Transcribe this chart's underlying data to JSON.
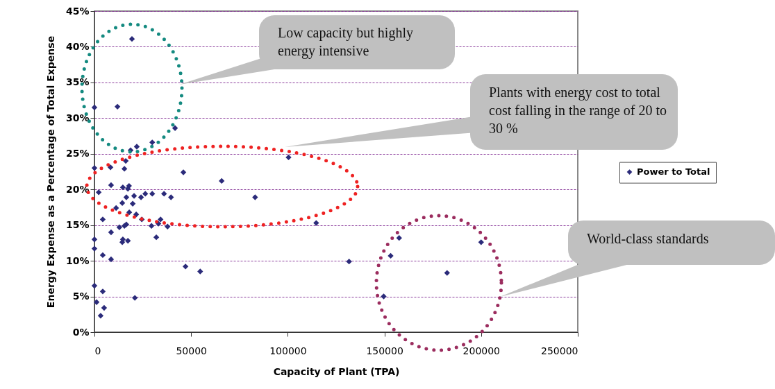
{
  "chart_data": {
    "type": "scatter",
    "xlabel": "Capacity of Plant (TPA)",
    "ylabel": "Energy Expense as a Percentage of Total Expense",
    "xlim": [
      0,
      250000
    ],
    "xticks": [
      0,
      50000,
      100000,
      150000,
      200000,
      250000
    ],
    "ylim": [
      0,
      45
    ],
    "yticks": [
      {
        "value": 0,
        "label": "0%"
      },
      {
        "value": 5,
        "label": "5%"
      },
      {
        "value": 10,
        "label": "10%"
      },
      {
        "value": 15,
        "label": "15%"
      },
      {
        "value": 20,
        "label": "20%"
      },
      {
        "value": 25,
        "label": "25%"
      },
      {
        "value": 30,
        "label": "30%"
      },
      {
        "value": 35,
        "label": "35%"
      },
      {
        "value": 40,
        "label": "40%"
      },
      {
        "value": 45,
        "label": "45%"
      }
    ],
    "grid": "y",
    "legend": "right",
    "marker": "diamond",
    "series": [
      {
        "name": "Power to Total",
        "color": "#2b2b7a",
        "x": [
          19400,
          0,
          11900,
          41700,
          29900,
          21900,
          18700,
          100400,
          0,
          16200,
          15500,
          8300,
          46000,
          65800,
          8600,
          14700,
          17900,
          17300,
          2200,
          36000,
          26300,
          29900,
          20500,
          24100,
          39600,
          83100,
          16500,
          14400,
          19800,
          11200,
          18000,
          21600,
          4300,
          24500,
          34200,
          114700,
          16500,
          15500,
          12900,
          29500,
          37800,
          33100,
          8600,
          14700,
          17300,
          14400,
          32000,
          0,
          157600,
          200000,
          0,
          4300,
          8600,
          153200,
          131700,
          47100,
          54700,
          182400,
          0,
          4300,
          149600,
          20900,
          1100,
          5000,
          3200
        ],
        "values": [
          41.1,
          31.5,
          31.6,
          28.6,
          26.6,
          26.0,
          25.5,
          24.5,
          23.0,
          24.0,
          22.9,
          23.1,
          22.4,
          21.2,
          20.6,
          20.3,
          20.5,
          20.1,
          19.6,
          19.4,
          19.4,
          19.4,
          19.1,
          18.9,
          18.9,
          18.9,
          18.9,
          18.1,
          18.0,
          17.4,
          16.8,
          16.5,
          15.8,
          15.8,
          15.8,
          15.3,
          15.1,
          14.9,
          14.7,
          14.9,
          14.8,
          15.2,
          14.0,
          13.0,
          12.8,
          12.6,
          13.3,
          13.0,
          13.2,
          12.6,
          11.7,
          10.8,
          10.2,
          10.7,
          9.9,
          9.2,
          8.5,
          8.3,
          6.5,
          5.7,
          5.0,
          4.8,
          4.2,
          3.4,
          2.3
        ]
      }
    ],
    "annotations": [
      "Low capacity but highly energy intensive",
      "Plants with energy cost to total cost falling in the range of 20 to 30 %",
      "World-class standards"
    ]
  }
}
